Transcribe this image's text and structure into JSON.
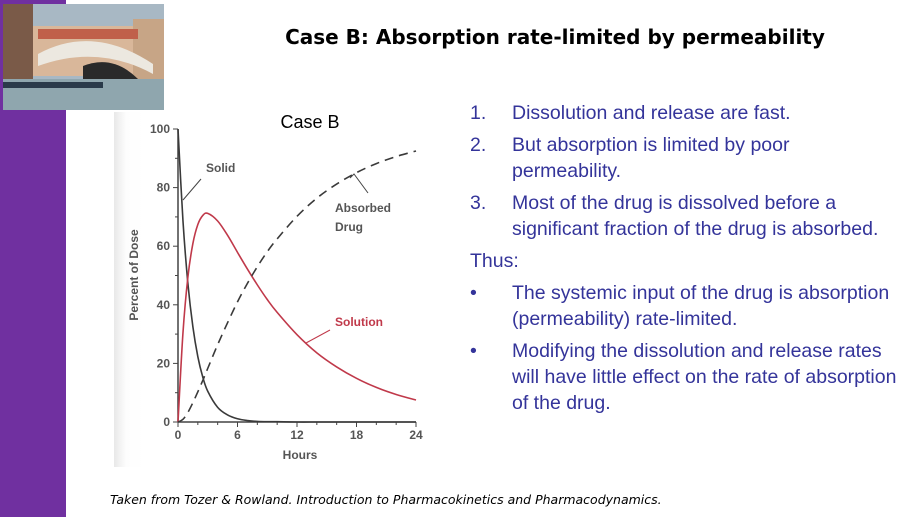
{
  "slide": {
    "title": "Case B: Absorption rate-limited by permeability",
    "photo_description_icon": "rialto-bridge-photo",
    "accent_color": "#7030a0",
    "text_color": "#34349a",
    "numbered_points": [
      {
        "num": "1.",
        "text": "Dissolution and release are fast."
      },
      {
        "num": "2.",
        "text": "But absorption is limited by poor permeability."
      },
      {
        "num": "3.",
        "text": "Most of the drug is dissolved before a significant fraction of the drug is absorbed."
      }
    ],
    "thus_label": "Thus:",
    "bullet_points": [
      {
        "bullet": "•",
        "text": "The systemic input of the drug is absorption (permeability) rate-limited."
      },
      {
        "bullet": "•",
        "text": "Modifying the dissolution and release rates will have little effect on the rate of absorption of the drug."
      }
    ],
    "footer": "Taken from Tozer & Rowland. Introduction to Pharmacokinetics and Pharmacodynamics."
  },
  "chart_data": {
    "type": "line",
    "title": "Case B",
    "xlabel": "Hours",
    "ylabel": "Percent of Dose",
    "xlim": [
      0,
      24
    ],
    "ylim": [
      0,
      100
    ],
    "xticks": [
      "0",
      "6",
      "12",
      "18",
      "24"
    ],
    "yticks": [
      "0",
      "20",
      "40",
      "60",
      "80",
      "100"
    ],
    "grid": false,
    "x": [
      0,
      0.5,
      1,
      1.5,
      2,
      2.5,
      3,
      4,
      5,
      6,
      7,
      8,
      9,
      10,
      12,
      14,
      16,
      18,
      20,
      22,
      24
    ],
    "series": [
      {
        "name": "Solid",
        "color": "#3a3a3a",
        "style": "solid",
        "values": [
          100,
          68.7,
          47.2,
          32.5,
          22.3,
          15.3,
          10.5,
          5.0,
          2.4,
          1.1,
          0.5,
          0.2,
          0.1,
          0.1,
          0,
          0,
          0,
          0,
          0,
          0,
          0
        ]
      },
      {
        "name": "Solution",
        "color": "#c0394a",
        "style": "solid",
        "values": [
          0,
          30.4,
          49.5,
          60.9,
          67.4,
          70.5,
          71.2,
          68.6,
          63.7,
          57.9,
          52.2,
          46.8,
          41.8,
          37.4,
          29.8,
          23.6,
          18.8,
          14.9,
          11.8,
          9.4,
          7.5
        ]
      },
      {
        "name": "Absorbed Drug",
        "color": "#3a3a3a",
        "style": "dashed",
        "values": [
          0,
          0.9,
          3.3,
          6.6,
          10.3,
          14.2,
          18.3,
          26.4,
          33.9,
          41.0,
          47.3,
          53.0,
          58.1,
          62.5,
          70.2,
          76.4,
          81.2,
          85.1,
          88.2,
          90.6,
          92.5
        ]
      }
    ],
    "labels": {
      "solid": "Solid",
      "absorbed_line1": "Absorbed",
      "absorbed_line2": "Drug",
      "solution": "Solution"
    }
  }
}
